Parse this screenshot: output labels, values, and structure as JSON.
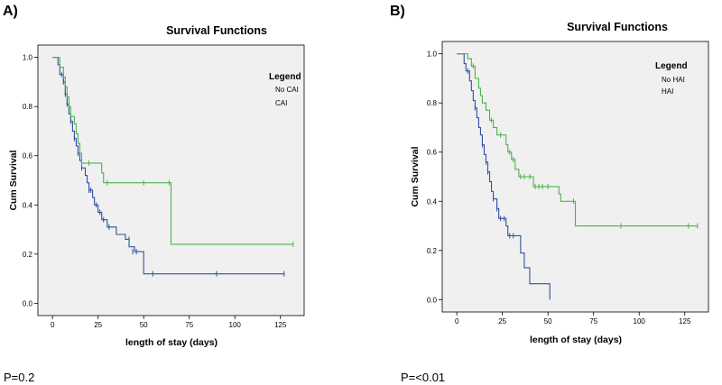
{
  "chart_data": [
    {
      "type": "line",
      "panel": "A)",
      "title": "Survival Functions",
      "xlabel": "length of stay (days)",
      "ylabel": "Cum Survival",
      "xlim": [
        -8,
        138
      ],
      "ylim": [
        -0.05,
        1.05
      ],
      "x_ticks": [
        0,
        25,
        50,
        75,
        100,
        125
      ],
      "y_ticks": [
        0.0,
        0.2,
        0.4,
        0.6,
        0.8,
        1.0
      ],
      "grid": false,
      "background": "#f0f0f0",
      "legend": {
        "title": "Legend",
        "placement": "top-right",
        "items": [
          "No CAI",
          "CAI"
        ]
      },
      "annotation": "P=0.2",
      "series": [
        {
          "color": "#3150a4",
          "steps": [
            [
              0,
              1.0
            ],
            [
              3,
              0.97
            ],
            [
              4,
              0.93
            ],
            [
              6,
              0.9
            ],
            [
              7,
              0.85
            ],
            [
              8,
              0.81
            ],
            [
              9,
              0.77
            ],
            [
              10,
              0.74
            ],
            [
              11,
              0.7
            ],
            [
              12,
              0.67
            ],
            [
              13,
              0.64
            ],
            [
              14,
              0.61
            ],
            [
              15,
              0.58
            ],
            [
              16,
              0.55
            ],
            [
              18,
              0.52
            ],
            [
              19,
              0.49
            ],
            [
              20,
              0.46
            ],
            [
              22,
              0.43
            ],
            [
              23,
              0.4
            ],
            [
              25,
              0.37
            ],
            [
              27,
              0.34
            ],
            [
              30,
              0.31
            ],
            [
              35,
              0.28
            ],
            [
              40,
              0.26
            ],
            [
              42,
              0.23
            ],
            [
              45,
              0.21
            ],
            [
              50,
              0.12
            ],
            [
              127,
              0.12
            ]
          ],
          "censored": [
            [
              5,
              0.93
            ],
            [
              6,
              0.9
            ],
            [
              7,
              0.85
            ],
            [
              8,
              0.81
            ],
            [
              10,
              0.74
            ],
            [
              12,
              0.67
            ],
            [
              14,
              0.61
            ],
            [
              16,
              0.55
            ],
            [
              20,
              0.46
            ],
            [
              21,
              0.46
            ],
            [
              24,
              0.4
            ],
            [
              26,
              0.37
            ],
            [
              28,
              0.34
            ],
            [
              31,
              0.31
            ],
            [
              42,
              0.26
            ],
            [
              44,
              0.21
            ],
            [
              46,
              0.21
            ],
            [
              55,
              0.12
            ],
            [
              90,
              0.12
            ],
            [
              127,
              0.12
            ]
          ]
        },
        {
          "color": "#4db34d",
          "steps": [
            [
              0,
              1.0
            ],
            [
              4,
              0.96
            ],
            [
              6,
              0.92
            ],
            [
              7,
              0.88
            ],
            [
              8,
              0.84
            ],
            [
              9,
              0.8
            ],
            [
              10,
              0.76
            ],
            [
              12,
              0.73
            ],
            [
              13,
              0.69
            ],
            [
              14,
              0.65
            ],
            [
              15,
              0.61
            ],
            [
              16,
              0.57
            ],
            [
              27,
              0.53
            ],
            [
              28,
              0.49
            ],
            [
              64,
              0.49
            ],
            [
              65,
              0.24
            ],
            [
              132,
              0.24
            ]
          ],
          "censored": [
            [
              16,
              0.57
            ],
            [
              20,
              0.57
            ],
            [
              30,
              0.49
            ],
            [
              50,
              0.49
            ],
            [
              64,
              0.49
            ],
            [
              132,
              0.24
            ]
          ]
        }
      ]
    },
    {
      "type": "line",
      "panel": "B)",
      "title": "Survival Functions",
      "xlabel": "length of stay (days)",
      "ylabel": "Cum Survival",
      "xlim": [
        -8,
        138
      ],
      "ylim": [
        -0.05,
        1.05
      ],
      "x_ticks": [
        0,
        25,
        50,
        75,
        100,
        125
      ],
      "y_ticks": [
        0.0,
        0.2,
        0.4,
        0.6,
        0.8,
        1.0
      ],
      "grid": false,
      "background": "#f0f0f0",
      "legend": {
        "title": "Legend",
        "placement": "top-right",
        "items": [
          "No HAI",
          "HAI"
        ]
      },
      "annotation": "P=<0.01",
      "series": [
        {
          "color": "#3150a4",
          "steps": [
            [
              0,
              1.0
            ],
            [
              4,
              0.96
            ],
            [
              5,
              0.93
            ],
            [
              7,
              0.89
            ],
            [
              8,
              0.85
            ],
            [
              9,
              0.81
            ],
            [
              10,
              0.78
            ],
            [
              11,
              0.74
            ],
            [
              12,
              0.7
            ],
            [
              13,
              0.67
            ],
            [
              14,
              0.63
            ],
            [
              15,
              0.59
            ],
            [
              16,
              0.56
            ],
            [
              17,
              0.52
            ],
            [
              18,
              0.48
            ],
            [
              19,
              0.44
            ],
            [
              20,
              0.41
            ],
            [
              22,
              0.37
            ],
            [
              23,
              0.33
            ],
            [
              27,
              0.3
            ],
            [
              28,
              0.26
            ],
            [
              33,
              0.26
            ],
            [
              35,
              0.19
            ],
            [
              37,
              0.13
            ],
            [
              40,
              0.065
            ],
            [
              47,
              0.065
            ],
            [
              51,
              0.0
            ]
          ],
          "censored": [
            [
              6,
              0.93
            ],
            [
              10,
              0.78
            ],
            [
              14,
              0.63
            ],
            [
              16,
              0.56
            ],
            [
              17,
              0.52
            ],
            [
              20,
              0.41
            ],
            [
              22,
              0.37
            ],
            [
              24,
              0.33
            ],
            [
              26,
              0.33
            ],
            [
              29,
              0.26
            ],
            [
              31,
              0.26
            ]
          ]
        },
        {
          "color": "#4db34d",
          "steps": [
            [
              0,
              1.0
            ],
            [
              6,
              0.98
            ],
            [
              8,
              0.95
            ],
            [
              10,
              0.9
            ],
            [
              12,
              0.86
            ],
            [
              13,
              0.83
            ],
            [
              14,
              0.8
            ],
            [
              16,
              0.77
            ],
            [
              18,
              0.73
            ],
            [
              20,
              0.7
            ],
            [
              22,
              0.67
            ],
            [
              27,
              0.63
            ],
            [
              28,
              0.6
            ],
            [
              30,
              0.57
            ],
            [
              32,
              0.53
            ],
            [
              34,
              0.5
            ],
            [
              38,
              0.5
            ],
            [
              42,
              0.46
            ],
            [
              56,
              0.43
            ],
            [
              57,
              0.4
            ],
            [
              64,
              0.4
            ],
            [
              65,
              0.3
            ],
            [
              132,
              0.3
            ]
          ],
          "censored": [
            [
              9,
              0.95
            ],
            [
              19,
              0.73
            ],
            [
              24,
              0.67
            ],
            [
              29,
              0.6
            ],
            [
              31,
              0.57
            ],
            [
              35,
              0.5
            ],
            [
              37,
              0.5
            ],
            [
              40,
              0.5
            ],
            [
              43,
              0.46
            ],
            [
              45,
              0.46
            ],
            [
              47,
              0.46
            ],
            [
              50,
              0.46
            ],
            [
              64,
              0.4
            ],
            [
              90,
              0.3
            ],
            [
              127,
              0.3
            ],
            [
              132,
              0.3
            ]
          ]
        }
      ]
    }
  ]
}
